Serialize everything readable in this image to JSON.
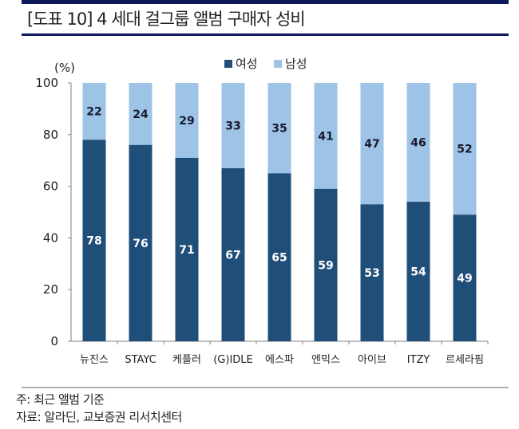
{
  "header": {
    "title": "[도표 10] 4 세대 걸그룹 앨범 구매자 성비"
  },
  "footer": {
    "note": "주: 최근 앨범 기준",
    "source": "자료: 알라딘, 교보증권 리서치센터"
  },
  "colors": {
    "female": "#1f4e79",
    "male": "#9dc3e6",
    "axis": "#7f7f7f",
    "female_label": "#ffffff",
    "male_label": "#1a1a2e"
  },
  "chart_data": {
    "type": "bar",
    "stacked": true,
    "title": "4 세대 걸그룹 앨범 구매자 성비",
    "unit_label": "(%)",
    "xlabel": "",
    "ylabel": "(%)",
    "ylim": [
      0,
      100
    ],
    "yticks": [
      0,
      20,
      40,
      60,
      80,
      100
    ],
    "grid": false,
    "legend_position": "top-right",
    "categories": [
      "뉴진스",
      "STAYC",
      "케플러",
      "(G)IDLE",
      "에스파",
      "엔믹스",
      "아이브",
      "ITZY",
      "르세라핌"
    ],
    "series": [
      {
        "name": "여성",
        "values": [
          78,
          76,
          71,
          67,
          65,
          59,
          53,
          54,
          49
        ]
      },
      {
        "name": "남성",
        "values": [
          22,
          24,
          29,
          33,
          35,
          41,
          47,
          46,
          52
        ]
      }
    ]
  }
}
